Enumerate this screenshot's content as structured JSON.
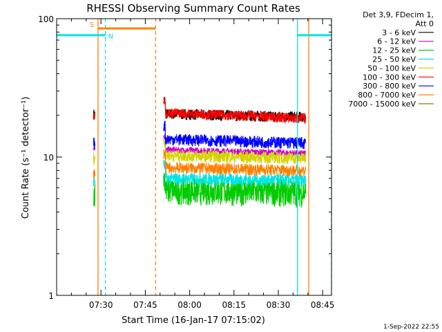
{
  "chart_data": {
    "type": "line",
    "title": "RHESSI Observing Summary Count Rates",
    "xlabel": "Start Time (16-Jan-17 07:15:02)",
    "ylabel": "Count Rate (s⁻¹ detector⁻¹)",
    "yscale": "log",
    "ylim": [
      1,
      100
    ],
    "xlim_minutes": [
      0,
      93
    ],
    "x_ticks": [
      {
        "t": 15,
        "label": "07:30"
      },
      {
        "t": 30,
        "label": "07:45"
      },
      {
        "t": 45,
        "label": "08:00"
      },
      {
        "t": 60,
        "label": "08:15"
      },
      {
        "t": 75,
        "label": "08:30"
      },
      {
        "t": 90,
        "label": "08:45"
      }
    ],
    "y_ticks": [
      {
        "v": 1,
        "label": "1"
      },
      {
        "v": 10,
        "label": "10"
      },
      {
        "v": 100,
        "label": "100"
      }
    ],
    "legend_header": [
      "Det 3,9, FDecim 1,",
      "Att 0"
    ],
    "legend_placement": "right",
    "series": [
      {
        "name": "3 - 6 keV",
        "color": "#000000",
        "level": 20.5,
        "spread": 1.8,
        "level2": 19.5
      },
      {
        "name": "6 - 12 keV",
        "color": "#cc00cc",
        "level": 11.3,
        "spread": 0.6,
        "level2": 10.6
      },
      {
        "name": "12 - 25 keV",
        "color": "#00cc00",
        "level": 5.8,
        "spread": 1.3,
        "level2": 5.6
      },
      {
        "name": "25 - 50 keV",
        "color": "#00e5e5",
        "level": 7.0,
        "spread": 0.7,
        "level2": 6.8
      },
      {
        "name": "50 - 100 keV",
        "color": "#d4d400",
        "level": 10.3,
        "spread": 1.0,
        "level2": 9.8
      },
      {
        "name": "100 - 300 keV",
        "color": "#ff0000",
        "level": 21.0,
        "spread": 1.7,
        "level2": 19.0
      },
      {
        "name": "300 - 800 keV",
        "color": "#0000ff",
        "level": 13.5,
        "spread": 1.3,
        "level2": 12.6
      },
      {
        "name": "800 - 7000 keV",
        "color": "#ff8000",
        "level": 8.4,
        "spread": 0.8,
        "level2": 8.0
      },
      {
        "name": "7000 - 15000 keV",
        "color": "#808000",
        "level": 0,
        "spread": 0,
        "level2": 0
      }
    ],
    "data_windows": [
      {
        "start": 12.5,
        "end": 13.0
      },
      {
        "start": 36.2,
        "end": 84.3
      }
    ],
    "flags": [
      {
        "label": "S",
        "color": "#ff8000",
        "start": 14.0,
        "end": 33.5,
        "y": 85
      },
      {
        "label": "N",
        "color": "#00e5e5",
        "start": 0,
        "end": 16.5,
        "y": 76
      },
      {
        "label": "",
        "color": "#00e5e5",
        "start": 81.5,
        "end": 93,
        "y": 76
      }
    ],
    "vlines": [
      {
        "t": 14.0,
        "color": "#ff8000",
        "style": "solid"
      },
      {
        "t": 16.5,
        "color": "#00e5e5",
        "style": "dashed"
      },
      {
        "t": 33.5,
        "color": "#ff8000",
        "style": "dashed"
      },
      {
        "t": 81.5,
        "color": "#00e5e5",
        "style": "solid"
      },
      {
        "t": 85.3,
        "color": "#ff8000",
        "style": "solid"
      },
      {
        "t": 93.0,
        "color": "#00e5e5",
        "style": "dashed"
      }
    ],
    "footer": "1-Sep-2022 22:55"
  }
}
